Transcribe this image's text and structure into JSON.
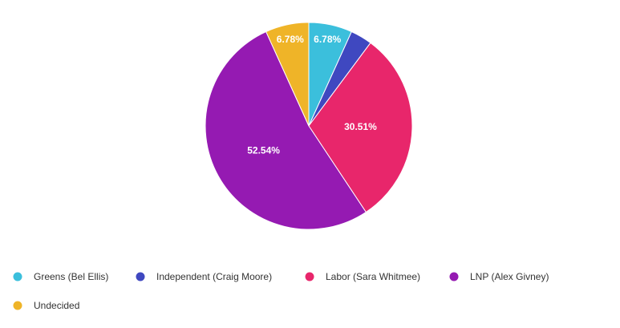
{
  "chart_data": {
    "type": "pie",
    "categories": [
      "Greens (Bel Ellis)",
      "Independent (Craig Moore)",
      "Labor (Sara Whitmee)",
      "LNP (Alex Givney)",
      "Undecided"
    ],
    "values": [
      6.78,
      3.39,
      30.51,
      52.54,
      6.78
    ],
    "value_labels": [
      "6.78%",
      null,
      "30.51%",
      "52.54%",
      "6.78%"
    ],
    "colors": [
      "#3bbfdc",
      "#3f48c0",
      "#e8266b",
      "#951ab2",
      "#efb428"
    ],
    "legend": "bottom"
  }
}
